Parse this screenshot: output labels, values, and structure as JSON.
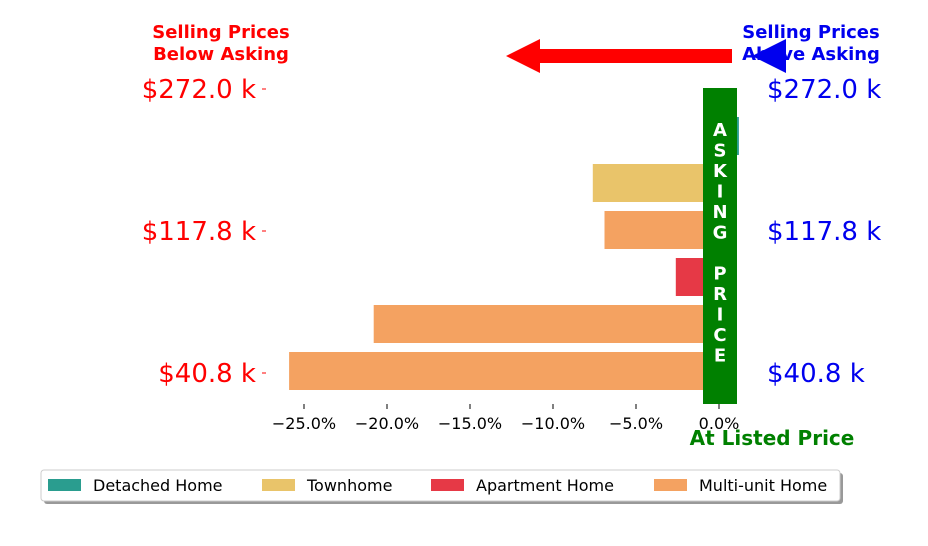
{
  "titles": {
    "below": [
      "Selling Prices",
      "Below Asking"
    ],
    "above": [
      "Selling Prices",
      "Above Asking"
    ],
    "asking_price": "ASKING PRICE",
    "at_listed": "At Listed Price"
  },
  "colors": {
    "below": "#ff0000",
    "above": "#0000ee",
    "asking": "#008000",
    "Detached Home": "#2a9d8f",
    "Townhome": "#e9c46a",
    "Apartment Home": "#e63946",
    "Multi-unit Home": "#f4a261"
  },
  "chart_data": {
    "type": "bar",
    "orientation": "horizontal",
    "x_ticks": [
      -25,
      -20,
      -15,
      -10,
      -5,
      0
    ],
    "x_tick_labels": [
      "−25.0%",
      "−20.0%",
      "−15.0%",
      "−10.0%",
      "−5.0%",
      "0.0%"
    ],
    "xlim": [
      -26.5,
      1.5
    ],
    "y_tick_labels": [
      "$272.0 k",
      "$117.8 k",
      "$40.8 k"
    ],
    "bars": [
      {
        "type": "Detached Home",
        "value": 1.2
      },
      {
        "type": "Townhome",
        "value": -7.6
      },
      {
        "type": "Multi-unit Home",
        "value": -6.9
      },
      {
        "type": "Apartment Home",
        "value": -2.6
      },
      {
        "type": "Multi-unit Home",
        "value": -20.8
      },
      {
        "type": "Multi-unit Home",
        "value": -25.9
      }
    ],
    "legend": [
      "Detached Home",
      "Townhome",
      "Apartment Home",
      "Multi-unit Home"
    ],
    "legend_position": "bottom"
  }
}
